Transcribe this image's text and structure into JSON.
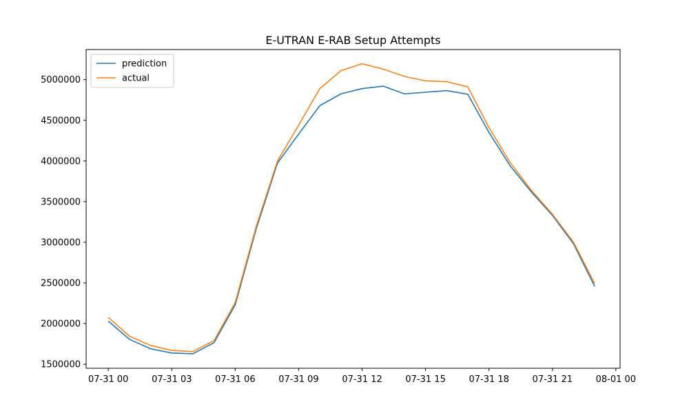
{
  "chart_data": {
    "type": "line",
    "title": "E-UTRAN E-RAB Setup Attempts",
    "xlabel": "",
    "ylabel": "",
    "x": [
      "07-31 00:00",
      "07-31 01:00",
      "07-31 02:00",
      "07-31 03:00",
      "07-31 04:00",
      "07-31 05:00",
      "07-31 06:00",
      "07-31 07:00",
      "07-31 08:00",
      "07-31 09:00",
      "07-31 10:00",
      "07-31 11:00",
      "07-31 12:00",
      "07-31 13:00",
      "07-31 14:00",
      "07-31 15:00",
      "07-31 16:00",
      "07-31 17:00",
      "07-31 18:00",
      "07-31 19:00",
      "07-31 20:00",
      "07-31 21:00",
      "07-31 22:00",
      "07-31 23:00"
    ],
    "x_ticks": [
      "07-31 00",
      "07-31 03",
      "07-31 06",
      "07-31 09",
      "07-31 12",
      "07-31 15",
      "07-31 18",
      "07-31 21",
      "08-01 00"
    ],
    "x_tick_hours": [
      0,
      3,
      6,
      9,
      12,
      15,
      18,
      21,
      24
    ],
    "xlim_hours": [
      -1.05,
      24.2
    ],
    "y_ticks": [
      1500000,
      2000000,
      2500000,
      3000000,
      3500000,
      4000000,
      4500000,
      5000000
    ],
    "y_tick_labels": [
      "1500000",
      "2000000",
      "2500000",
      "3000000",
      "3500000",
      "4000000",
      "4500000",
      "5000000"
    ],
    "ylim": [
      1450000,
      5370000
    ],
    "series": [
      {
        "name": "prediction",
        "color": "#1f77b4",
        "values": [
          2030000,
          1805000,
          1690000,
          1638000,
          1628000,
          1765000,
          2230000,
          3170000,
          3975000,
          4330000,
          4680000,
          4825000,
          4890000,
          4920000,
          4825000,
          4845000,
          4865000,
          4820000,
          4350000,
          3940000,
          3620000,
          3330000,
          2980000,
          2455000
        ]
      },
      {
        "name": "actual",
        "color": "#ff7f0e",
        "values": [
          2075000,
          1845000,
          1730000,
          1670000,
          1655000,
          1790000,
          2260000,
          3200000,
          4000000,
          4440000,
          4890000,
          5110000,
          5195000,
          5130000,
          5040000,
          4985000,
          4975000,
          4910000,
          4410000,
          3980000,
          3640000,
          3345000,
          3000000,
          2490000
        ]
      }
    ],
    "legend": {
      "placement": "top-left"
    },
    "grid": false
  }
}
